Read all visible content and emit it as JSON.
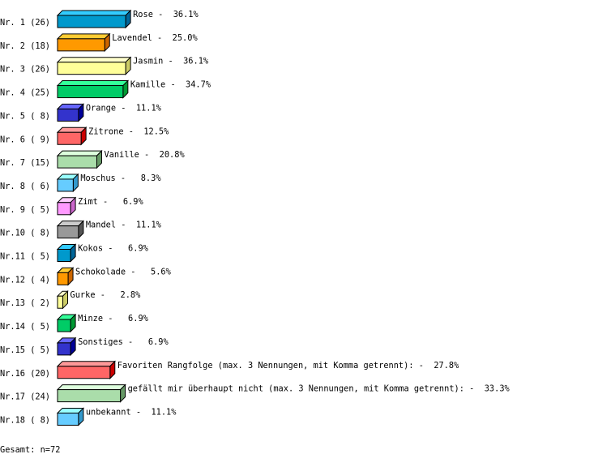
{
  "chart_data": {
    "type": "bar",
    "orientation": "horizontal",
    "style": "3d",
    "categories": [
      "Rose",
      "Lavendel",
      "Jasmin",
      "Kamille",
      "Orange",
      "Zitrone",
      "Vanille",
      "Moschus",
      "Zimt",
      "Mandel",
      "Kokos",
      "Schokolade",
      "Gurke",
      "Minze",
      "Sonstiges",
      "Favoriten Rangfolge (max. 3 Nennungen, mit Komma getrennt):",
      "gefällt mir überhaupt nicht (max. 3 Nennungen, mit Komma getrennt):",
      "unbekannt"
    ],
    "row_labels": [
      "Nr. 1 (26)",
      "Nr. 2 (18)",
      "Nr. 3 (26)",
      "Nr. 4 (25)",
      "Nr. 5 ( 8)",
      "Nr. 6 ( 9)",
      "Nr. 7 (15)",
      "Nr. 8 ( 6)",
      "Nr. 9 ( 5)",
      "Nr.10 ( 8)",
      "Nr.11 ( 5)",
      "Nr.12 ( 4)",
      "Nr.13 ( 2)",
      "Nr.14 ( 5)",
      "Nr.15 ( 5)",
      "Nr.16 (20)",
      "Nr.17 (24)",
      "Nr.18 ( 8)"
    ],
    "counts": [
      26,
      18,
      26,
      25,
      8,
      9,
      15,
      6,
      5,
      8,
      5,
      4,
      2,
      5,
      5,
      20,
      24,
      8
    ],
    "values": [
      36.1,
      25.0,
      36.1,
      34.7,
      11.1,
      12.5,
      20.8,
      8.3,
      6.9,
      11.1,
      6.9,
      5.6,
      2.8,
      6.9,
      6.9,
      27.8,
      33.3,
      11.1
    ],
    "unit": "%",
    "xlim": [
      0,
      100
    ],
    "grid": false,
    "total": "Gesamt: n=72",
    "colors": [
      {
        "front": "#0099cc",
        "top": "#33ccff",
        "side": "#006699"
      },
      {
        "front": "#ff9900",
        "top": "#ffcc33",
        "side": "#cc6600"
      },
      {
        "front": "#ffff99",
        "top": "#ffffcc",
        "side": "#cccc66"
      },
      {
        "front": "#00cc66",
        "top": "#33ff99",
        "side": "#009933"
      },
      {
        "front": "#3333cc",
        "top": "#6666ff",
        "side": "#000099"
      },
      {
        "front": "#ff6666",
        "top": "#ff9999",
        "side": "#cc0000"
      },
      {
        "front": "#aaddaa",
        "top": "#ddffdd",
        "side": "#669966"
      },
      {
        "front": "#66ccff",
        "top": "#99ffff",
        "side": "#3399cc"
      },
      {
        "front": "#ff99ff",
        "top": "#ffccff",
        "side": "#cc66cc"
      },
      {
        "front": "#999999",
        "top": "#cccccc",
        "side": "#555555"
      }
    ]
  }
}
